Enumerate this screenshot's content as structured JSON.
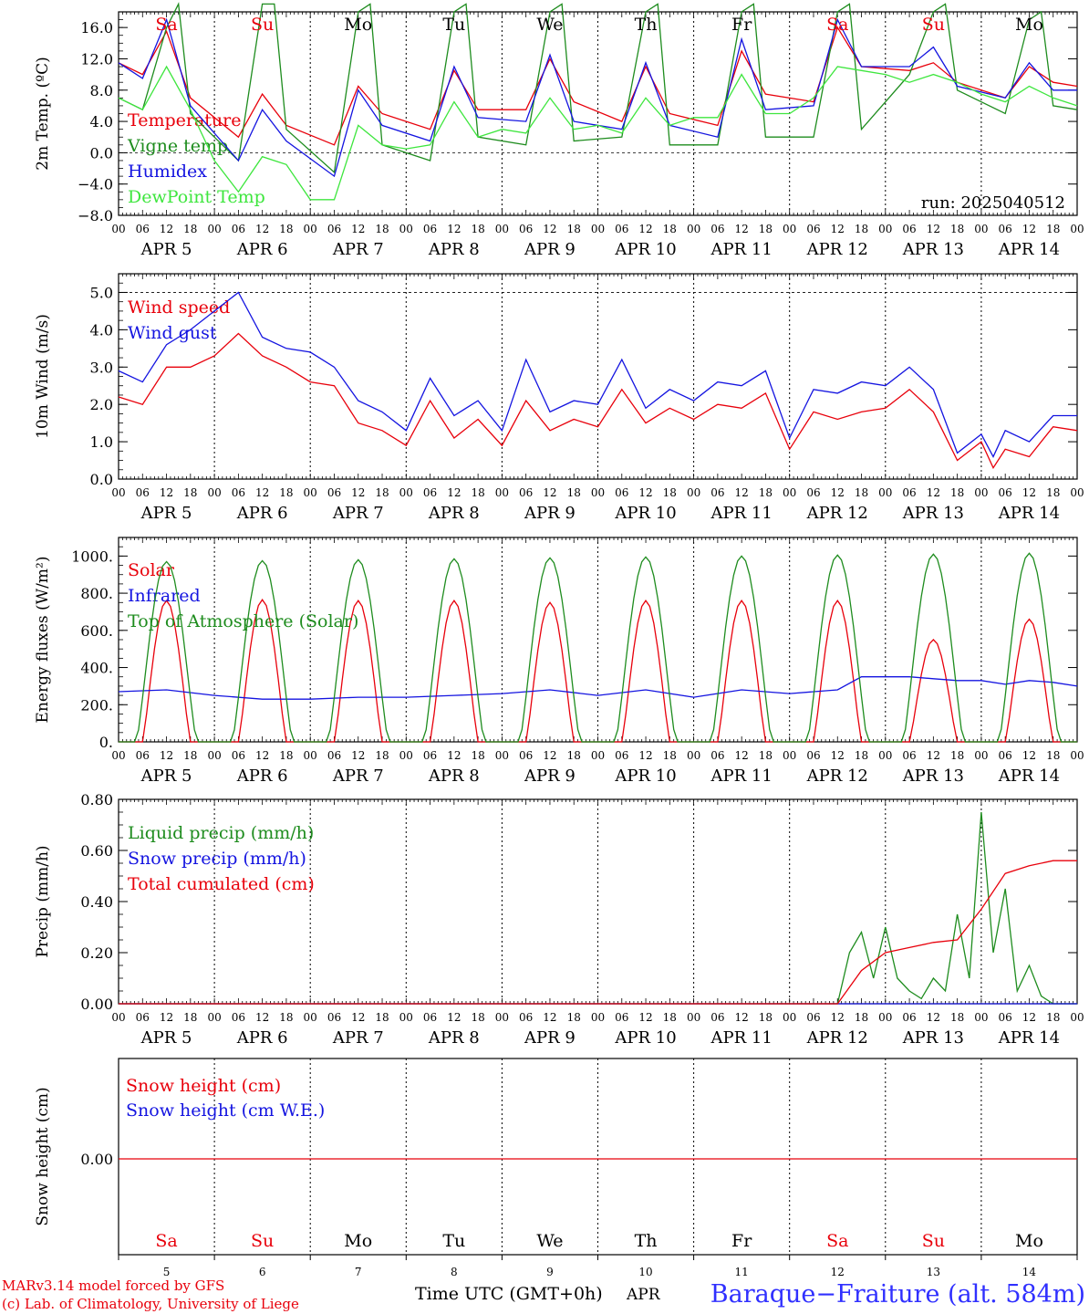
{
  "colors": {
    "red": "#e8000b",
    "green": "#1e8c1e",
    "lightgreen": "#3ee63e",
    "blue": "#1414e0",
    "title_blue": "#3030ff"
  },
  "days": [
    "Sa",
    "Su",
    "Mo",
    "Tu",
    "We",
    "Th",
    "Fr",
    "Sa",
    "Su",
    "Mo"
  ],
  "weekend_days": [
    0,
    1,
    7,
    8
  ],
  "dates": [
    "APR  5",
    "APR  6",
    "APR  7",
    "APR  8",
    "APR  9",
    "APR 10",
    "APR 11",
    "APR 12",
    "APR 13",
    "APR 14"
  ],
  "date_numbers": [
    "5",
    "6",
    "7",
    "8",
    "9",
    "10",
    "11",
    "12",
    "13",
    "14"
  ],
  "hour_labels": [
    "00",
    "06",
    "12",
    "18"
  ],
  "run_label": "run: 2025040512",
  "footer": {
    "model": "MARv3.14 model forced by GFS",
    "copyright": "(c) Lab. of Climatology, University of Liege",
    "time_axis": "Time UTC (GMT+0h)",
    "month": "APR",
    "station": "Baraque−Fraiture (alt. 584m)"
  },
  "chart_data": [
    {
      "type": "line",
      "ylabel": "2m Temp. (ºC)",
      "ylim": [
        -8,
        18
      ],
      "yticks": [
        "16.0",
        "12.0",
        "8.0",
        "4.0",
        "0.0",
        "−4.0",
        "−8.0"
      ],
      "ytick_values": [
        16,
        12,
        8,
        4,
        0,
        -4,
        -8
      ],
      "ref_line": 0,
      "x_unit": "hours since Apr 5 00 UTC",
      "series": [
        {
          "name": "Temperature",
          "color": "red",
          "x": [
            0,
            6,
            12,
            18,
            30,
            36,
            42,
            54,
            60,
            66,
            78,
            84,
            90,
            102,
            108,
            114,
            126,
            132,
            138,
            150,
            156,
            162,
            174,
            180,
            186,
            198,
            204,
            210,
            222,
            228,
            234,
            240
          ],
          "y": [
            11.5,
            10,
            15.5,
            7,
            2,
            7.5,
            3.5,
            1,
            8.5,
            5,
            3,
            10.5,
            5.5,
            5.5,
            12,
            6.5,
            4,
            11,
            5,
            3.5,
            13,
            7.5,
            6.5,
            16,
            11,
            10.5,
            11.5,
            9,
            7,
            11,
            9,
            8.5
          ]
        },
        {
          "name": "Vigne temp",
          "color": "green",
          "x": [
            0,
            6,
            12,
            15,
            18,
            30,
            36,
            39,
            42,
            54,
            60,
            63,
            66,
            78,
            84,
            87,
            90,
            102,
            108,
            111,
            114,
            126,
            132,
            135,
            138,
            150,
            156,
            159,
            162,
            174,
            180,
            183,
            186,
            198,
            204,
            207,
            210,
            222,
            228,
            231,
            234,
            240
          ],
          "y": [
            7,
            5.5,
            16,
            19,
            5,
            -1,
            19,
            19,
            3,
            -2.5,
            18,
            19,
            1,
            -1,
            18,
            19,
            2,
            1,
            18,
            19,
            1.5,
            2,
            18,
            19,
            1,
            1,
            18,
            19,
            2,
            2,
            18,
            19,
            3,
            10,
            18,
            19,
            8,
            5,
            17,
            18,
            6,
            5.5
          ]
        },
        {
          "name": "Humidex",
          "color": "blue",
          "x": [
            0,
            6,
            12,
            18,
            30,
            36,
            42,
            54,
            60,
            66,
            78,
            84,
            90,
            102,
            108,
            114,
            126,
            132,
            138,
            150,
            156,
            162,
            174,
            180,
            186,
            198,
            204,
            210,
            222,
            228,
            234,
            240
          ],
          "y": [
            11.5,
            9.5,
            17,
            6,
            -1,
            5.5,
            1.5,
            -3,
            8,
            3.5,
            1.5,
            11,
            4.5,
            4,
            12.5,
            4,
            3,
            11.5,
            3.5,
            2,
            14.5,
            5.5,
            6,
            17,
            11,
            11,
            13.5,
            8.5,
            7,
            11.5,
            8,
            8
          ]
        },
        {
          "name": "DewPoint Temp",
          "color": "lightgreen",
          "x": [
            0,
            6,
            12,
            18,
            24,
            30,
            36,
            42,
            48,
            54,
            60,
            66,
            72,
            78,
            84,
            90,
            96,
            102,
            108,
            114,
            120,
            126,
            132,
            138,
            144,
            150,
            156,
            162,
            168,
            174,
            180,
            186,
            192,
            198,
            204,
            210,
            216,
            222,
            228,
            234,
            240
          ],
          "y": [
            7,
            5.5,
            11,
            5.5,
            -1,
            -5,
            -0.5,
            -1.5,
            -6,
            -6,
            3.5,
            1,
            0.5,
            1,
            6.5,
            2,
            3,
            2.5,
            7,
            3,
            3.5,
            2.5,
            7,
            3.5,
            4.5,
            4.5,
            10,
            5,
            5,
            7,
            11,
            10.5,
            10,
            9,
            10,
            9,
            7.5,
            6.5,
            8.5,
            7,
            6
          ]
        }
      ]
    },
    {
      "type": "line",
      "ylabel": "10m Wind (m/s)",
      "ylim": [
        0,
        5.5
      ],
      "yticks": [
        "5.0",
        "4.0",
        "3.0",
        "2.0",
        "1.0",
        "0.0"
      ],
      "ytick_values": [
        5,
        4,
        3,
        2,
        1,
        0
      ],
      "ref_line": 5,
      "series": [
        {
          "name": "Wind speed",
          "color": "red",
          "x": [
            0,
            6,
            12,
            18,
            24,
            30,
            36,
            42,
            48,
            54,
            60,
            66,
            72,
            78,
            84,
            90,
            96,
            102,
            108,
            114,
            120,
            126,
            132,
            138,
            144,
            150,
            156,
            162,
            168,
            174,
            180,
            186,
            192,
            198,
            204,
            210,
            216,
            219,
            222,
            228,
            234,
            240
          ],
          "y": [
            2.2,
            2,
            3,
            3,
            3.3,
            3.9,
            3.3,
            3,
            2.6,
            2.5,
            1.5,
            1.3,
            0.9,
            2.1,
            1.1,
            1.6,
            0.9,
            2.1,
            1.3,
            1.6,
            1.4,
            2.4,
            1.5,
            1.9,
            1.6,
            2,
            1.9,
            2.3,
            0.8,
            1.8,
            1.6,
            1.8,
            1.9,
            2.4,
            1.8,
            0.5,
            1,
            0.3,
            0.8,
            0.6,
            1.4,
            1.3
          ]
        },
        {
          "name": "Wind gust",
          "color": "blue",
          "x": [
            0,
            6,
            12,
            18,
            24,
            30,
            36,
            42,
            48,
            54,
            60,
            66,
            72,
            78,
            84,
            90,
            96,
            102,
            108,
            114,
            120,
            126,
            132,
            138,
            144,
            150,
            156,
            162,
            168,
            174,
            180,
            186,
            192,
            198,
            204,
            210,
            216,
            219,
            222,
            228,
            234,
            240
          ],
          "y": [
            2.9,
            2.6,
            3.6,
            4,
            4.5,
            5,
            3.8,
            3.5,
            3.4,
            3,
            2.1,
            1.8,
            1.3,
            2.7,
            1.7,
            2.1,
            1.3,
            3.2,
            1.8,
            2.1,
            2,
            3.2,
            1.9,
            2.4,
            2.1,
            2.6,
            2.5,
            2.9,
            1.1,
            2.4,
            2.3,
            2.6,
            2.5,
            3,
            2.4,
            0.7,
            1.2,
            0.6,
            1.3,
            1,
            1.7,
            1.7
          ]
        }
      ]
    },
    {
      "type": "line",
      "ylabel": "Energy fluxes (W/m²)",
      "ylim": [
        0,
        1100
      ],
      "yticks": [
        "1000.",
        "800.",
        "600.",
        "400.",
        "200.",
        "0."
      ],
      "ytick_values": [
        1000,
        800,
        600,
        400,
        200,
        0
      ],
      "series": [
        {
          "name": "Solar",
          "color": "red",
          "kind": "diurnal",
          "peaks": [
            760,
            765,
            760,
            760,
            750,
            760,
            760,
            760,
            550,
            660
          ],
          "notes": "clipped by clouds on Apr 12-14"
        },
        {
          "name": "Infrared",
          "color": "blue",
          "x": [
            0,
            12,
            24,
            36,
            48,
            60,
            72,
            84,
            96,
            108,
            120,
            132,
            144,
            156,
            168,
            180,
            186,
            198,
            204,
            210,
            216,
            222,
            228,
            234,
            240
          ],
          "y": [
            270,
            280,
            250,
            230,
            230,
            240,
            240,
            250,
            260,
            280,
            250,
            280,
            240,
            280,
            260,
            280,
            350,
            350,
            340,
            330,
            330,
            310,
            330,
            320,
            300
          ]
        },
        {
          "name": "Top of Atmosphere (Solar)",
          "color": "green",
          "kind": "diurnal",
          "peaks": [
            970,
            975,
            980,
            985,
            990,
            995,
            1000,
            1005,
            1010,
            1015
          ]
        }
      ]
    },
    {
      "type": "line",
      "ylabel": "Precip (mm/h)",
      "ylim": [
        0,
        0.8
      ],
      "yticks": [
        "0.80",
        "0.60",
        "0.40",
        "0.20",
        "0.00"
      ],
      "ytick_values": [
        0.8,
        0.6,
        0.4,
        0.2,
        0
      ],
      "series": [
        {
          "name": "Liquid precip (mm/h)",
          "color": "green",
          "x": [
            0,
            180,
            183,
            186,
            189,
            192,
            195,
            198,
            201,
            204,
            207,
            210,
            213,
            216,
            219,
            222,
            225,
            228,
            231,
            234,
            240
          ],
          "y": [
            0,
            0,
            0.2,
            0.28,
            0.1,
            0.3,
            0.1,
            0.05,
            0.02,
            0.1,
            0.05,
            0.35,
            0.1,
            0.75,
            0.2,
            0.45,
            0.05,
            0.15,
            0.03,
            0,
            0
          ]
        },
        {
          "name": "Snow precip (mm/h)",
          "color": "blue",
          "x": [
            0,
            240
          ],
          "y": [
            0,
            0
          ]
        },
        {
          "name": "Total cumulated (cm)",
          "color": "red",
          "x": [
            0,
            180,
            186,
            192,
            198,
            204,
            210,
            216,
            222,
            228,
            234,
            240
          ],
          "y": [
            0,
            0,
            0.13,
            0.2,
            0.22,
            0.24,
            0.25,
            0.37,
            0.51,
            0.54,
            0.56,
            0.56
          ]
        }
      ]
    },
    {
      "type": "line",
      "ylabel": "Snow height (cm)",
      "yticks": [
        "0.00"
      ],
      "ytick_values": [
        0
      ],
      "series": [
        {
          "name": "Snow height (cm)",
          "color": "red",
          "x": [
            0,
            240
          ],
          "y": [
            0,
            0
          ]
        },
        {
          "name": "Snow height (cm W.E.)",
          "color": "blue",
          "x": [
            0,
            240
          ],
          "y": [
            0,
            0
          ]
        }
      ]
    }
  ]
}
